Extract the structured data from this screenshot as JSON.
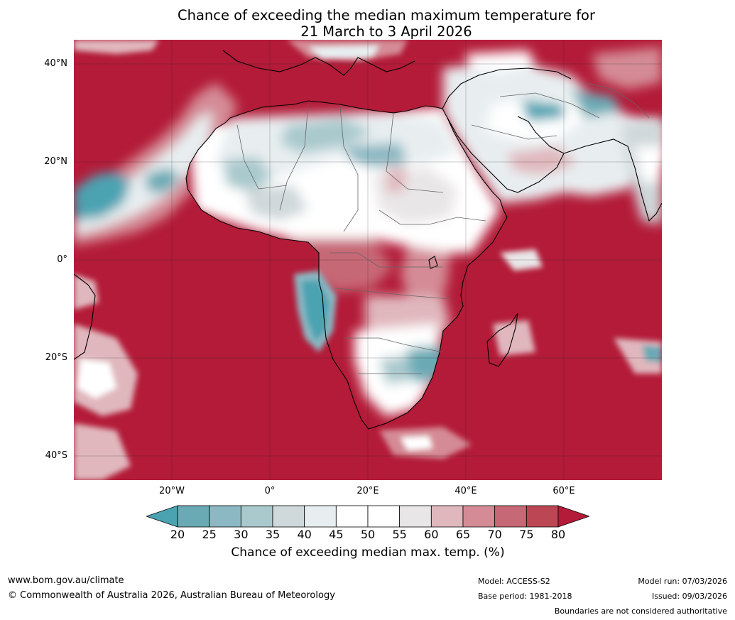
{
  "title_line1": "Chance of exceeding the median maximum temperature for",
  "title_line2": "21 March to 3 April 2026",
  "map": {
    "projection": "equirectangular",
    "lon_range": [
      -40,
      80
    ],
    "lat_range": [
      -45,
      45
    ],
    "lat_labels": [
      {
        "lat": 40,
        "text": "40°N"
      },
      {
        "lat": 20,
        "text": "20°N"
      },
      {
        "lat": 0,
        "text": "0°"
      },
      {
        "lat": -20,
        "text": "20°S"
      },
      {
        "lat": -40,
        "text": "40°S"
      }
    ],
    "lon_labels": [
      {
        "lon": -20,
        "text": "20°W"
      },
      {
        "lon": 0,
        "text": "0°"
      },
      {
        "lon": 20,
        "text": "20°E"
      },
      {
        "lon": 40,
        "text": "40°E"
      },
      {
        "lon": 60,
        "text": "60°E"
      }
    ],
    "ocean_color": "#b31b38"
  },
  "colorbar": {
    "ticks": [
      "20",
      "25",
      "30",
      "35",
      "40",
      "45",
      "50",
      "55",
      "60",
      "65",
      "70",
      "75",
      "80"
    ],
    "colors": [
      "#6aaab5",
      "#8cb8c3",
      "#a9c9cd",
      "#cfd8da",
      "#e8eef0",
      "#ffffff",
      "#ffffff",
      "#e9e6e7",
      "#e0b7bd",
      "#d48b95",
      "#c76876",
      "#bd4655"
    ],
    "under_color": "#4ba3b2",
    "over_color": "#b31b38",
    "label": "Chance of exceeding median max. temp. (%)"
  },
  "footer": {
    "website": "www.bom.gov.au/climate",
    "copyright": "© Commonwealth of Australia 2026, Australian Bureau of Meteorology",
    "model": "Model: ACCESS-S2",
    "base_period": "Base period: 1981-2018",
    "model_run": "Model run: 07/03/2026",
    "issued": "Issued: 09/03/2026",
    "disclaimer": "Boundaries are not considered authoritative"
  }
}
